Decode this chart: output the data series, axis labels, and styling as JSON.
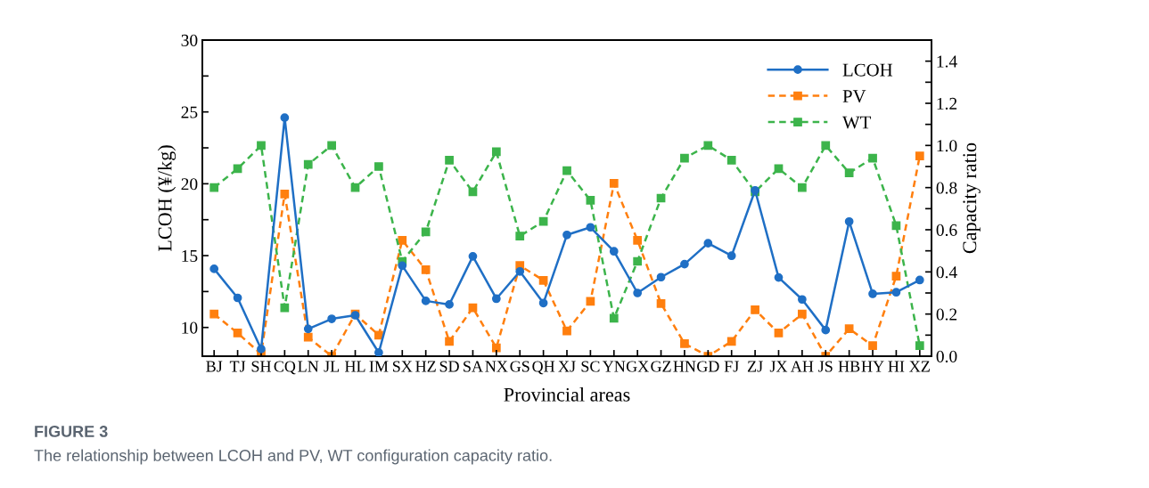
{
  "chart_data": {
    "type": "line",
    "xlabel": "Provincial areas",
    "ylabel": "LCOH (¥/kg)",
    "y2label": "Capacity ratio",
    "categories": [
      "BJ",
      "TJ",
      "SH",
      "CQ",
      "LN",
      "JL",
      "HL",
      "IM",
      "SX",
      "HZ",
      "SD",
      "SA",
      "NX",
      "GS",
      "QH",
      "XJ",
      "SC",
      "YN",
      "GX",
      "GZ",
      "HN",
      "GD",
      "FJ",
      "ZJ",
      "JX",
      "AH",
      "JS",
      "HB",
      "HY",
      "HI",
      "XZ"
    ],
    "series": [
      {
        "name": "LCOH",
        "color": "#1f6fc5",
        "marker": "circle",
        "line_style": "solid",
        "values": [
          14.08,
          12.06,
          8.5,
          24.6,
          9.9,
          10.6,
          10.85,
          8.25,
          14.3,
          11.85,
          11.6,
          14.95,
          12.0,
          13.9,
          11.7,
          16.44,
          16.97,
          15.3,
          12.4,
          13.5,
          14.41,
          15.86,
          14.99,
          19.54,
          13.48,
          11.95,
          9.82,
          17.37,
          12.34,
          12.45,
          13.3
        ]
      },
      {
        "name": "PV",
        "color": "#ff7f0e",
        "marker": "square",
        "line_style": "dashed",
        "axis": "y2",
        "values": [
          0.2,
          0.11,
          0.01,
          0.77,
          0.09,
          0.0,
          0.2,
          0.1,
          0.55,
          0.41,
          0.07,
          0.23,
          0.04,
          0.43,
          0.36,
          0.12,
          0.26,
          0.82,
          0.55,
          0.25,
          0.06,
          0.0,
          0.07,
          0.22,
          0.11,
          0.2,
          0.0,
          0.13,
          0.05,
          0.38,
          0.95
        ]
      },
      {
        "name": "WT",
        "color": "#3cb44b",
        "marker": "square",
        "line_style": "dashed",
        "axis": "y2",
        "values": [
          0.8,
          0.89,
          1.0,
          0.23,
          0.91,
          1.0,
          0.8,
          0.9,
          0.45,
          0.59,
          0.93,
          0.78,
          0.97,
          0.57,
          0.64,
          0.88,
          0.74,
          0.18,
          0.45,
          0.75,
          0.94,
          1.0,
          0.93,
          0.78,
          0.89,
          0.8,
          1.0,
          0.87,
          0.94,
          0.62,
          0.05
        ]
      }
    ],
    "ylim": [
      8,
      30
    ],
    "yticks": [
      10,
      {
        "value": 12.5,
        "label": null
      },
      15,
      {
        "value": 17.5,
        "label": null
      },
      20,
      {
        "value": 22.5,
        "label": null
      },
      25,
      {
        "value": 27.5,
        "label": null
      },
      30
    ],
    "y2lim": [
      0,
      1.5
    ],
    "y2ticks": [
      {
        "value": 0,
        "label": "0.0"
      },
      {
        "value": 0.1,
        "label": null
      },
      {
        "value": 0.2,
        "label": "0.2"
      },
      {
        "value": 0.3,
        "label": null
      },
      {
        "value": 0.4,
        "label": "0.4"
      },
      {
        "value": 0.5,
        "label": null
      },
      {
        "value": 0.6,
        "label": "0.6"
      },
      {
        "value": 0.7,
        "label": null
      },
      {
        "value": 0.8,
        "label": "0.8"
      },
      {
        "value": 0.9,
        "label": null
      },
      {
        "value": 1.0,
        "label": "1.0"
      },
      {
        "value": 1.1,
        "label": null
      },
      {
        "value": 1.2,
        "label": "1.2"
      },
      {
        "value": 1.3,
        "label": null
      },
      {
        "value": 1.4,
        "label": "1.4"
      }
    ],
    "grid": false,
    "legend": "top right",
    "annotations": [
      "FIGURE 3",
      "The relationship between LCOH and PV, WT configuration capacity ratio."
    ]
  }
}
